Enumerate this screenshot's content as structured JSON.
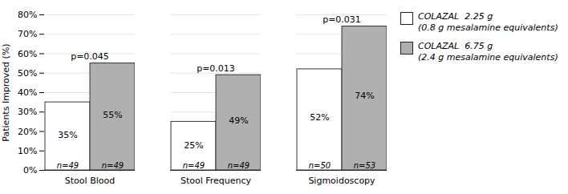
{
  "chart_data": {
    "type": "bar",
    "categories": [
      "Stool Blood",
      "Stool Frequency",
      "Sigmoidoscopy"
    ],
    "series": [
      {
        "name": "COLAZAL  2.25 g\n(0.8 g mesalamine equivalents)",
        "color": "#ffffff",
        "values": [
          35,
          25,
          52
        ],
        "value_labels": [
          "35%",
          "25%",
          "52%"
        ],
        "annotations": [
          "n=49",
          "n=49",
          "n=50"
        ]
      },
      {
        "name": "COLAZAL  6.75 g\n(2.4 g mesalamine equivalents)",
        "color": "#b0b0b0",
        "values": [
          55,
          49,
          74
        ],
        "value_labels": [
          "55%",
          "49%",
          "74%"
        ],
        "annotations": [
          "n=49",
          "n=49",
          "n=53"
        ]
      }
    ],
    "annotations": [
      "p=0.045",
      "p=0.013",
      "p=0.031"
    ],
    "ylabel": "Patients Improved (%)",
    "ylim": [
      0,
      80
    ],
    "yticks": [
      {
        "value": 0,
        "label": "0%"
      },
      {
        "value": 10,
        "label": "10%"
      },
      {
        "value": 20,
        "label": "20%"
      },
      {
        "value": 30,
        "label": "30%"
      },
      {
        "value": 40,
        "label": "40%"
      },
      {
        "value": 50,
        "label": "50%"
      },
      {
        "value": 60,
        "label": "60%"
      },
      {
        "value": 70,
        "label": "70%"
      },
      {
        "value": 80,
        "label": "80%"
      }
    ],
    "grid": true,
    "data_labels": true,
    "legend": "right"
  }
}
